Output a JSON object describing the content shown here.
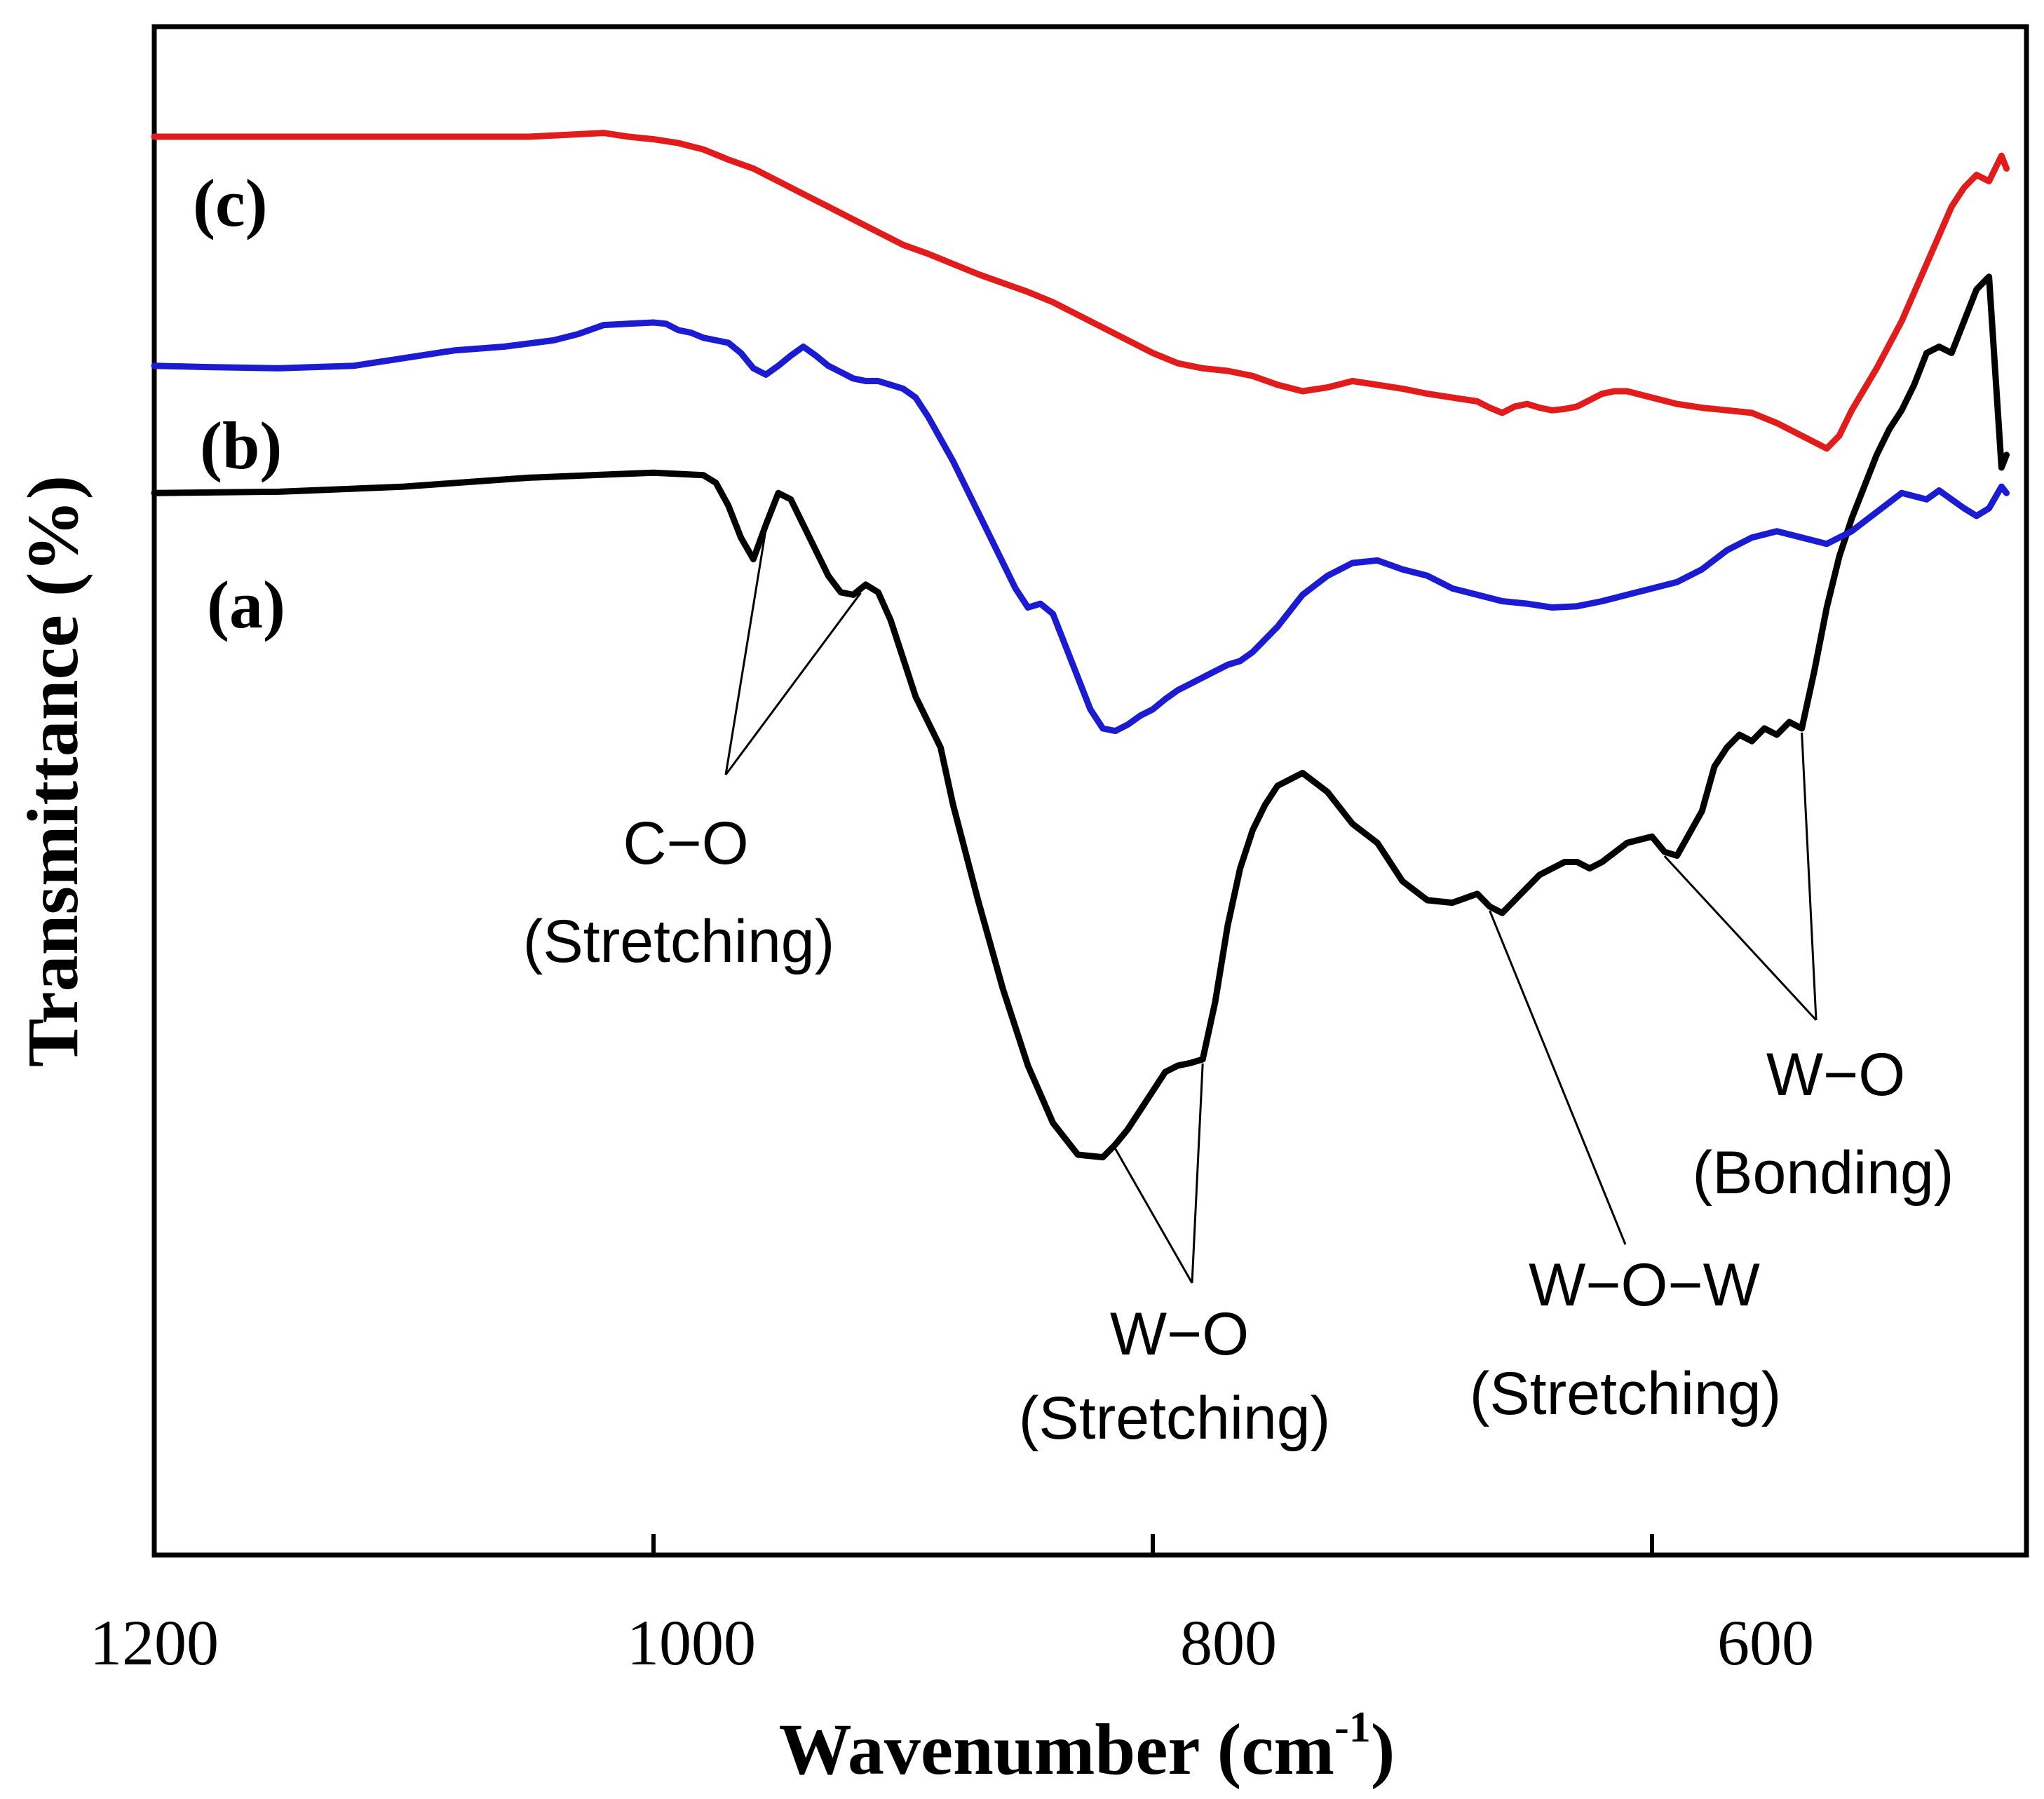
{
  "chart_data": {
    "type": "line",
    "title": "",
    "xlabel": "Wavenumber (cm",
    "xlabel_superscript": "-1",
    "xlabel_close": ")",
    "ylabel": "Transmittance (%)",
    "xlim": [
      1200,
      450
    ],
    "ylim": [
      0,
      100
    ],
    "x_ticks": [
      {
        "value": 1200,
        "label": "1200"
      },
      {
        "value": 1000,
        "label": "1000"
      },
      {
        "value": 800,
        "label": "800"
      },
      {
        "value": 600,
        "label": "600"
      }
    ],
    "y_ticks_shown": false,
    "grid": false,
    "series": [
      {
        "name": "(a)",
        "color": "#000000",
        "x": [
          1200,
          1150,
          1100,
          1050,
          1000,
          990,
          980,
          975,
          970,
          965,
          960,
          955,
          950,
          945,
          940,
          935,
          930,
          925,
          920,
          915,
          910,
          905,
          900,
          895,
          890,
          885,
          880,
          870,
          860,
          850,
          840,
          830,
          820,
          815,
          810,
          805,
          800,
          795,
          790,
          785,
          780,
          775,
          770,
          765,
          760,
          755,
          750,
          740,
          730,
          720,
          710,
          705,
          700,
          690,
          680,
          670,
          665,
          660,
          655,
          650,
          645,
          640,
          635,
          630,
          625,
          620,
          610,
          600,
          595,
          590,
          580,
          575,
          570,
          565,
          560,
          555,
          550,
          545,
          540,
          535,
          530,
          525,
          520,
          515,
          510,
          505,
          500,
          495,
          490,
          485,
          480,
          475,
          470,
          465,
          460,
          458
        ],
        "y": [
          72.0,
          72.1,
          72.5,
          73.2,
          73.6,
          73.5,
          73.4,
          72.8,
          71.0,
          68.5,
          66.8,
          69.5,
          72.0,
          71.5,
          69.5,
          67.5,
          65.5,
          64.2,
          64.0,
          64.8,
          64.2,
          62.0,
          59.0,
          56.0,
          54.0,
          52.0,
          47.5,
          40.0,
          33.0,
          27.0,
          22.5,
          20.0,
          19.8,
          20.8,
          22.0,
          23.5,
          25.0,
          26.5,
          27.0,
          27.2,
          27.5,
          32.0,
          38.0,
          42.5,
          45.5,
          47.5,
          49.0,
          50.0,
          48.5,
          46.0,
          44.5,
          43.0,
          41.5,
          40.0,
          39.8,
          40.5,
          39.5,
          39.0,
          40.0,
          41.0,
          42.0,
          42.5,
          43.0,
          43.0,
          42.5,
          43.0,
          44.5,
          45.0,
          43.8,
          43.5,
          47.0,
          50.5,
          52.0,
          53.0,
          52.5,
          53.5,
          53.0,
          54.0,
          53.5,
          58.0,
          63.0,
          67.0,
          70.0,
          72.5,
          75.0,
          77.0,
          78.5,
          80.5,
          83.0,
          83.5,
          83.0,
          85.5,
          88.0,
          89.0,
          74.0,
          75.0
        ]
      },
      {
        "name": "(b)",
        "color": "#1b1bd1",
        "x": [
          1200,
          1180,
          1150,
          1120,
          1100,
          1080,
          1060,
          1040,
          1030,
          1020,
          1010,
          1000,
          995,
          990,
          985,
          980,
          975,
          970,
          965,
          960,
          955,
          950,
          945,
          940,
          935,
          930,
          925,
          920,
          915,
          910,
          905,
          900,
          895,
          890,
          880,
          870,
          860,
          855,
          850,
          845,
          840,
          835,
          830,
          825,
          820,
          815,
          810,
          805,
          800,
          795,
          790,
          785,
          780,
          775,
          770,
          765,
          760,
          750,
          740,
          730,
          720,
          710,
          700,
          690,
          680,
          670,
          660,
          650,
          640,
          630,
          620,
          610,
          600,
          590,
          580,
          570,
          560,
          550,
          540,
          530,
          520,
          510,
          500,
          490,
          485,
          480,
          475,
          470,
          465,
          460,
          458
        ],
        "y": [
          82.0,
          81.9,
          81.8,
          82.0,
          82.6,
          83.2,
          83.5,
          84.0,
          84.5,
          85.2,
          85.3,
          85.4,
          85.3,
          84.8,
          84.6,
          84.2,
          84.0,
          83.8,
          83.0,
          81.8,
          81.3,
          82.0,
          82.8,
          83.5,
          82.8,
          82.0,
          81.5,
          81.0,
          80.8,
          80.8,
          80.5,
          80.2,
          79.5,
          78.0,
          74.5,
          70.5,
          66.5,
          64.5,
          63.0,
          63.3,
          62.5,
          60.0,
          57.5,
          55.0,
          53.5,
          53.3,
          53.8,
          54.5,
          55.0,
          55.8,
          56.5,
          57.0,
          57.5,
          58.0,
          58.5,
          58.8,
          59.5,
          61.5,
          64.0,
          65.5,
          66.5,
          66.7,
          66.0,
          65.5,
          64.5,
          64.0,
          63.5,
          63.3,
          63.0,
          63.1,
          63.5,
          64.0,
          64.5,
          65.0,
          66.0,
          67.5,
          68.5,
          69.0,
          68.5,
          68.0,
          69.0,
          70.5,
          72.0,
          71.5,
          72.2,
          71.5,
          70.8,
          70.2,
          70.8,
          72.5,
          72.0
        ]
      },
      {
        "name": "(c)",
        "color": "#e01c1c",
        "x": [
          1200,
          1150,
          1100,
          1050,
          1020,
          1010,
          1000,
          990,
          980,
          970,
          960,
          950,
          940,
          930,
          920,
          910,
          900,
          890,
          880,
          870,
          860,
          850,
          840,
          830,
          820,
          810,
          800,
          790,
          780,
          770,
          760,
          750,
          740,
          730,
          720,
          710,
          700,
          690,
          680,
          670,
          665,
          660,
          655,
          650,
          645,
          640,
          635,
          630,
          625,
          620,
          615,
          610,
          600,
          590,
          580,
          570,
          560,
          550,
          540,
          535,
          530,
          525,
          520,
          510,
          500,
          490,
          480,
          475,
          470,
          465,
          460,
          458
        ],
        "y": [
          100.0,
          100.0,
          100.0,
          100.0,
          100.3,
          100.0,
          99.8,
          99.5,
          99.0,
          98.2,
          97.5,
          96.5,
          95.5,
          94.5,
          93.5,
          92.5,
          91.5,
          90.8,
          90.0,
          89.2,
          88.5,
          87.8,
          87.0,
          86.0,
          85.0,
          84.0,
          83.0,
          82.2,
          81.8,
          81.6,
          81.2,
          80.5,
          80.0,
          80.3,
          80.8,
          80.5,
          80.2,
          79.8,
          79.5,
          79.2,
          78.7,
          78.3,
          78.8,
          79.0,
          78.7,
          78.5,
          78.6,
          78.8,
          79.3,
          79.8,
          80.0,
          80.0,
          79.5,
          79.0,
          78.7,
          78.5,
          78.3,
          77.5,
          76.5,
          76.0,
          75.5,
          76.5,
          78.5,
          81.8,
          85.5,
          90.0,
          94.5,
          96.0,
          97.0,
          96.5,
          98.5,
          97.5
        ]
      }
    ],
    "series_labels": [
      "(a)",
      "(b)",
      "(c)"
    ],
    "annotations": [
      {
        "lines": [
          "C−O",
          "(Stretching)"
        ],
        "points_to": [
          955,
          917
        ]
      },
      {
        "lines": [
          "W−O",
          "(Stretching)"
        ],
        "points_to": [
          815,
          780
        ]
      },
      {
        "lines": [
          "W−O−W",
          "(Stretching)"
        ],
        "points_to": [
          665
        ]
      },
      {
        "lines": [
          "W−O",
          "(Bonding)"
        ],
        "points_to": [
          595,
          540
        ]
      }
    ]
  }
}
